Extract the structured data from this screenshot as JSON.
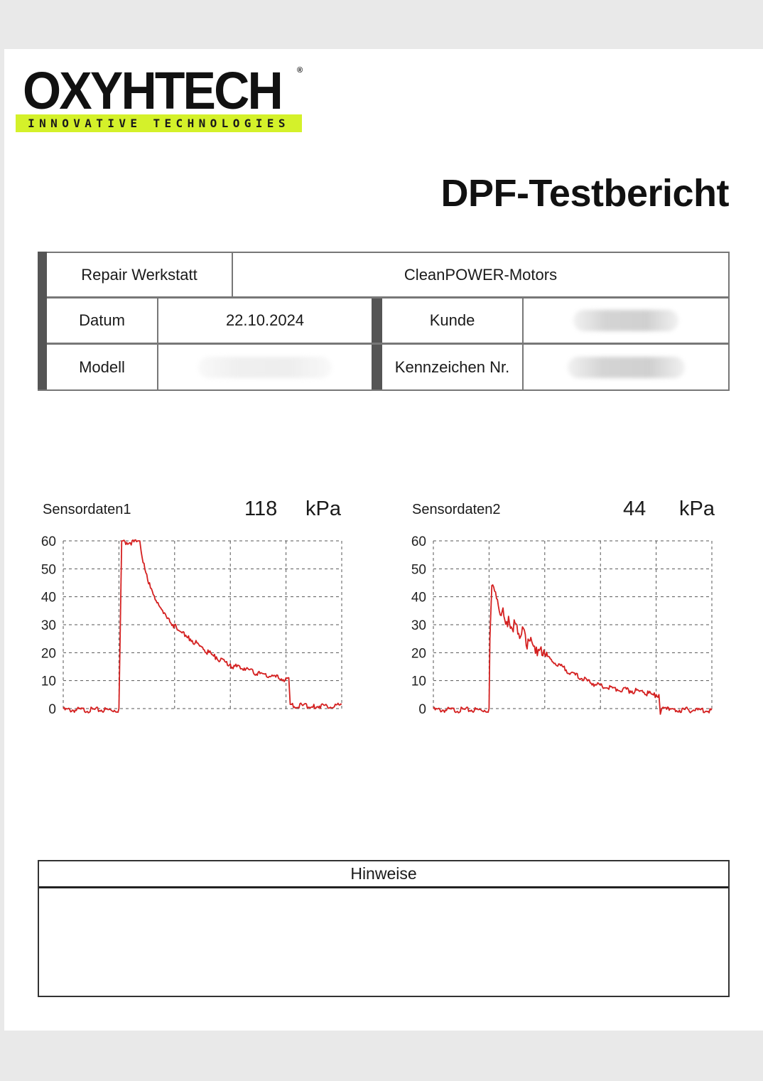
{
  "logo": {
    "wordmark": "OXYHTECH",
    "registered": "®",
    "tagline": "INNOVATIVE TECHNOLOGIES",
    "accent_color": "#d4f12a"
  },
  "title": "DPF-Testbericht",
  "info": {
    "werkstatt_label": "Repair Werkstatt",
    "werkstatt_value": "CleanPOWER-Motors",
    "datum_label": "Datum",
    "datum_value": "22.10.2024",
    "kunde_label": "Kunde",
    "kunde_value": "",
    "modell_label": "Modell",
    "modell_value": "",
    "kennzeichen_label": "Kennzeichen Nr.",
    "kennzeichen_value": ""
  },
  "chart_data": [
    {
      "type": "line",
      "name": "Sensordaten1",
      "value": "118",
      "unit": "kPa",
      "ylim": [
        0,
        60
      ],
      "yticks": [
        "0",
        "10",
        "20",
        "30",
        "40",
        "50",
        "60"
      ],
      "xlim": [
        0,
        100
      ],
      "grid": true,
      "color": "#d42020",
      "x": [
        0,
        20,
        20.5,
        21,
        21.5,
        27,
        27.5,
        28,
        29,
        30,
        31,
        32,
        33,
        35,
        37,
        40,
        43,
        45,
        50,
        55,
        60,
        65,
        70,
        75,
        80,
        81,
        81.5,
        82,
        90,
        100
      ],
      "y": [
        0,
        0,
        30,
        60,
        60,
        60,
        60,
        56,
        52,
        48,
        45,
        42,
        39,
        36,
        33,
        30,
        27.5,
        26,
        22,
        18.5,
        16,
        14.5,
        13,
        12,
        11,
        11,
        1.5,
        1.5,
        1.5,
        1.5
      ]
    },
    {
      "type": "line",
      "name": "Sensordaten2",
      "value": "44",
      "unit": "kPa",
      "ylim": [
        0,
        60
      ],
      "yticks": [
        "0",
        "10",
        "20",
        "30",
        "40",
        "50",
        "60"
      ],
      "xlim": [
        0,
        100
      ],
      "grid": true,
      "color": "#d42020",
      "x": [
        0,
        20,
        20.3,
        21,
        22,
        23,
        25,
        27,
        30,
        33,
        37,
        40,
        45,
        50,
        55,
        60,
        65,
        70,
        75,
        80,
        81,
        81.5,
        82,
        82.5,
        85,
        100
      ],
      "y": [
        0,
        0,
        25,
        44,
        42,
        39,
        36,
        33,
        30,
        26.5,
        22,
        19.5,
        16,
        13,
        10.5,
        8.5,
        7.5,
        7,
        6.5,
        5,
        5,
        -2,
        0,
        0.5,
        0,
        0
      ]
    }
  ],
  "notes": {
    "heading": "Hinweise"
  }
}
